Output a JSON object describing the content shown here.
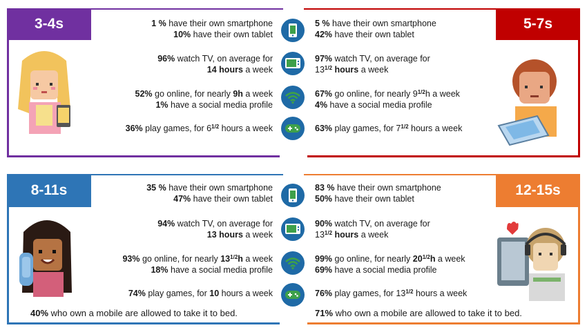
{
  "colors": {
    "purple": "#7030a0",
    "red": "#c00000",
    "blue": "#2e75b6",
    "orange": "#ed7d31",
    "icon_blue": "#1f6aa6",
    "icon_green": "#3ea04a"
  },
  "icons": [
    "smartphone-icon",
    "tv-icon",
    "wifi-icon",
    "gamepad-icon"
  ],
  "panels": {
    "a34": {
      "label": "3-4s",
      "rows": [
        [
          "<b>1 %</b> have their own smartphone",
          "<b>10%</b> have their own tablet"
        ],
        [
          "<b>96%</b> watch TV, on average for",
          "<b>14 hours</b> a week"
        ],
        [
          "<b>52%</b> go online, for nearly <b>9h</b> a week",
          "<b>1%</b> have a social media profile"
        ],
        [
          "<b>36%</b> play games, for 6<sup>1/2</sup> hours a week"
        ]
      ]
    },
    "a57": {
      "label": "5-7s",
      "rows": [
        [
          "<b>5 %</b> have their own smartphone",
          "<b>42%</b> have their own tablet"
        ],
        [
          "<b>97%</b> watch TV, on average for",
          "13<sup>1/2</sup> <b>hours</b> a week"
        ],
        [
          "<b>67%</b> go online, for nearly 9<sup>1/2</sup>h a week",
          "<b>4%</b> have a social media profile"
        ],
        [
          "<b>63%</b> play games, for 7<sup>1/2</sup> hours a week"
        ]
      ]
    },
    "a811": {
      "label": "8-11s",
      "rows": [
        [
          "<b>35 %</b> have their own smartphone",
          "<b>47%</b> have their own tablet"
        ],
        [
          "<b>94%</b> watch TV, on average for",
          "<b>13 hours</b> a week"
        ],
        [
          "<b>93%</b> go online, for nearly <b>13<sup>1/2</sup>h</b> a week",
          "<b>18%</b> have a social media profile"
        ],
        [
          "<b>74%</b> play games, for <b>10</b> hours a week"
        ]
      ],
      "footer": "<b>40%</b> who own a mobile are allowed to take it to bed."
    },
    "a1215": {
      "label": "12-15s",
      "rows": [
        [
          "<b>83 %</b> have their own smartphone",
          "<b>50%</b> have their own tablet"
        ],
        [
          "<b>90%</b> watch TV, on average for",
          "13<sup>1/2</sup> <b>hours</b> a week"
        ],
        [
          "<b>99%</b> go online, for nearly <b>20<sup>1/2</sup>h</b> a week",
          "<b>69%</b> have a social media profile"
        ],
        [
          "<b>76%</b> play games, for 13<sup>1/2</sup> hours a week"
        ]
      ],
      "footer": "<b>71%</b> who own a mobile are allowed to take it to bed."
    }
  }
}
